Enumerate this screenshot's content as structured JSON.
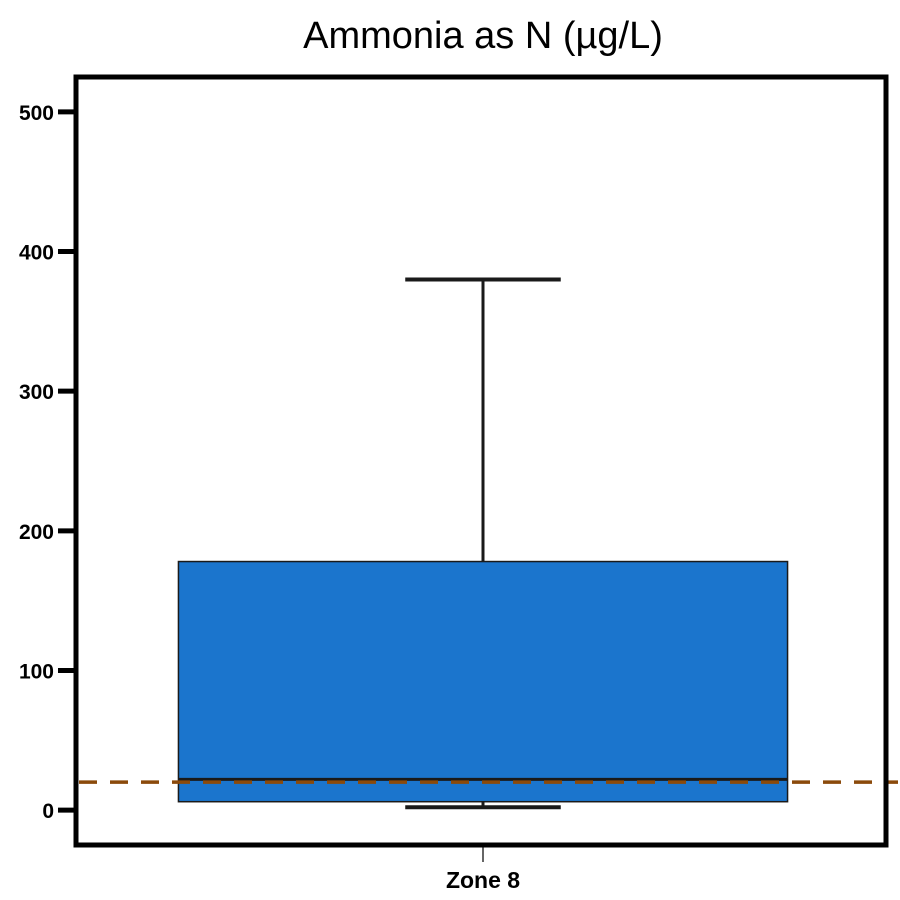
{
  "chart_data": {
    "type": "box",
    "title": "Ammonia as N (µg/L)",
    "xlabel": "",
    "ylabel": "",
    "ylim": [
      -25,
      525
    ],
    "yticks": [
      0,
      100,
      200,
      300,
      400,
      500
    ],
    "categories": [
      "Zone 8"
    ],
    "boxes": [
      {
        "category": "Zone 8",
        "whisker_low": 2,
        "q1": 6,
        "median": 22,
        "q3": 178,
        "whisker_high": 380
      }
    ],
    "reference_line": {
      "value": 20,
      "style": "dashed"
    },
    "grid": false,
    "colors": {
      "box_fill": "#1b75cd",
      "box_edge": "#1a1a1a",
      "reference_line": "#8b4a0b",
      "axis": "#000000"
    }
  }
}
